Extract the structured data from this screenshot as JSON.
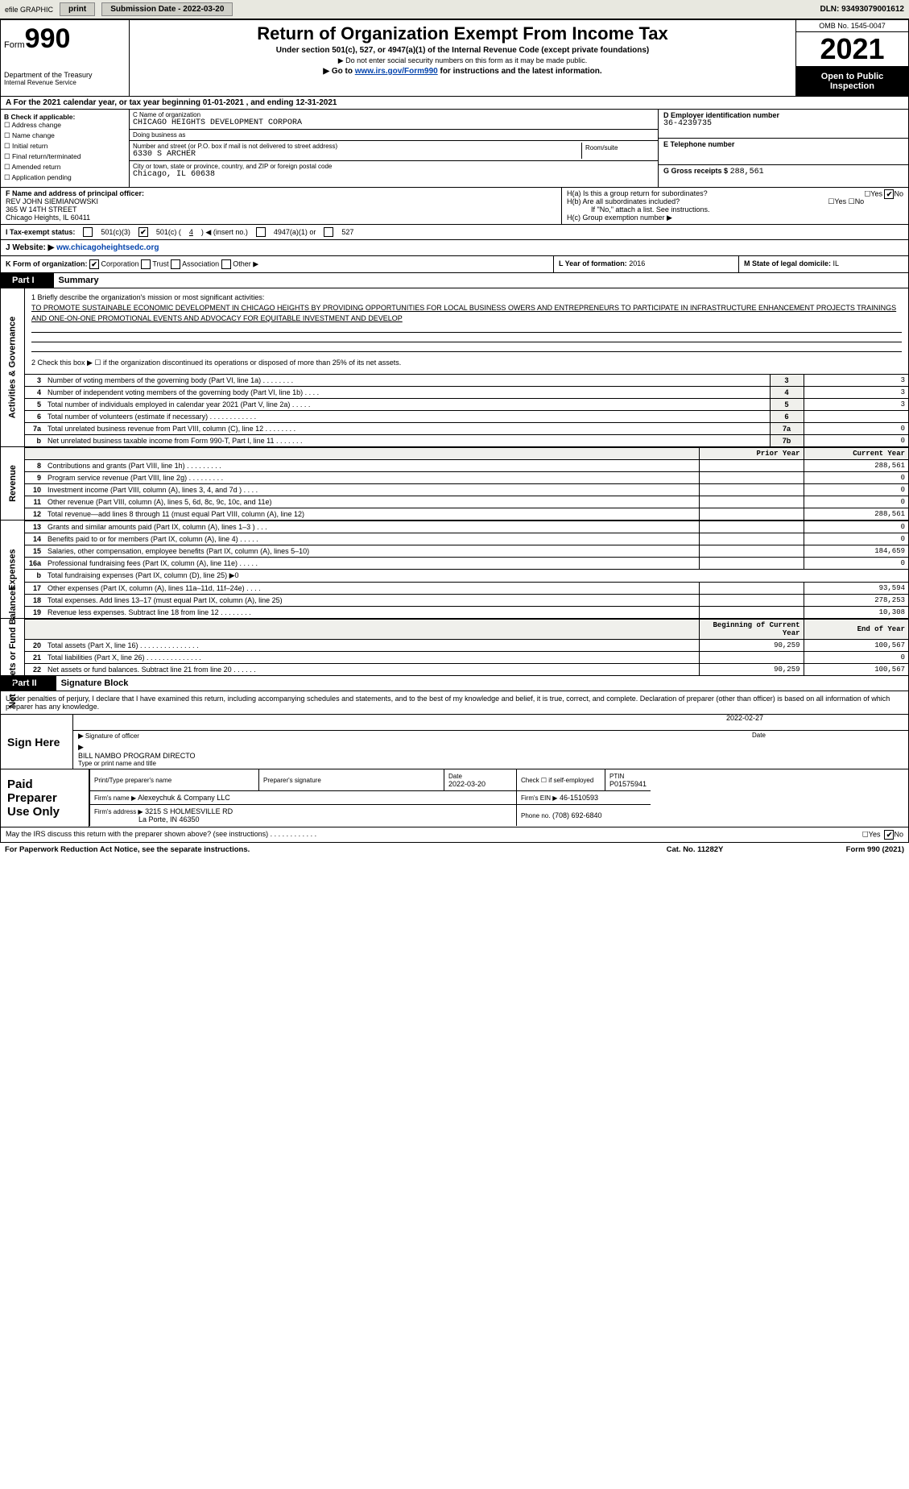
{
  "topbar": {
    "efile": "efile GRAPHIC",
    "print": "print",
    "subdate_lbl": "Submission Date - 2022-03-20",
    "dln": "DLN: 93493079001612"
  },
  "header": {
    "form_word": "Form",
    "form_no": "990",
    "title": "Return of Organization Exempt From Income Tax",
    "subtitle": "Under section 501(c), 527, or 4947(a)(1) of the Internal Revenue Code (except private foundations)",
    "note1": "▶ Do not enter social security numbers on this form as it may be made public.",
    "note2_pre": "▶ Go to ",
    "note2_link": "www.irs.gov/Form990",
    "note2_post": " for instructions and the latest information.",
    "omb": "OMB No. 1545-0047",
    "year": "2021",
    "pub": "Open to Public Inspection",
    "dept": "Department of the Treasury",
    "irs": "Internal Revenue Service"
  },
  "period": "A For the 2021 calendar year, or tax year beginning 01-01-2021    , and ending 12-31-2021",
  "B": {
    "hdr": "B Check if applicable:",
    "opts": [
      "Address change",
      "Name change",
      "Initial return",
      "Final return/terminated",
      "Amended return",
      "Application pending"
    ]
  },
  "C": {
    "name_lbl": "C Name of organization",
    "name": "CHICAGO HEIGHTS DEVELOPMENT CORPORA",
    "dba_lbl": "Doing business as",
    "dba": "",
    "street_lbl": "Number and street (or P.O. box if mail is not delivered to street address)",
    "room_lbl": "Room/suite",
    "street": "6330 S ARCHER",
    "city_lbl": "City or town, state or province, country, and ZIP or foreign postal code",
    "city": "Chicago, IL  60638"
  },
  "D": {
    "ein_lbl": "D Employer identification number",
    "ein": "36-4239735",
    "tel_lbl": "E Telephone number",
    "tel": "",
    "gross_lbl": "G Gross receipts $",
    "gross": "288,561"
  },
  "F": {
    "lbl": "F  Name and address of principal officer:",
    "name": "REV JOHN SIEMIANOWSKI",
    "addr1": "365 W 14TH STREET",
    "addr2": "Chicago Heights, IL  60411"
  },
  "H": {
    "a": "H(a)  Is this a group return for subordinates?",
    "b": "H(b)  Are all subordinates included?",
    "b_note": "If \"No,\" attach a list. See instructions.",
    "c": "H(c)  Group exemption number ▶",
    "yes": "Yes",
    "no": "No",
    "no_checked": "✔"
  },
  "I": {
    "lbl": "I    Tax-exempt status:",
    "o1": "501(c)(3)",
    "o2_pre": "501(c) (",
    "o2_val": "4",
    "o2_post": ") ◀ (insert no.)",
    "o3": "4947(a)(1) or",
    "o4": "527",
    "checked": "✔"
  },
  "J": {
    "lbl": "J   Website: ▶",
    "val": "ww.chicagoheightsedc.org"
  },
  "K": {
    "lbl": "K Form of organization:",
    "corp": "Corporation",
    "trust": "Trust",
    "assoc": "Association",
    "other": "Other ▶",
    "checked": "✔",
    "L_lbl": "L Year of formation:",
    "L_val": "2016",
    "M_lbl": "M State of legal domicile:",
    "M_val": "IL"
  },
  "part1": {
    "bar": "Part I",
    "title": "Summary",
    "side_gov": "Activities & Governance",
    "side_rev": "Revenue",
    "side_exp": "Expenses",
    "side_net": "Net Assets or Fund Balances",
    "q1": "1  Briefly describe the organization's mission or most significant activities:",
    "mission": "TO PROMOTE SUSTAINABLE ECONOMIC DEVELOPMENT IN CHICAGO HEIGHTS BY PROVIDING OPPORTUNITIES FOR LOCAL BUSINESS OWERS AND ENTREPRENEURS TO PARTICIPATE IN INFRASTRUCTURE ENHANCEMENT PROJECTS TRAININGS AND ONE-ON-ONE PROMOTIONAL EVENTS AND ADVOCACY FOR EQUITABLE INVESTMENT AND DEVELOP",
    "q2": "2   Check this box ▶ ☐ if the organization discontinued its operations or disposed of more than 25% of its net assets.",
    "rows_gov": [
      {
        "n": "3",
        "t": "Number of voting members of the governing body (Part VI, line 1a)   .    .    .    .    .    .    .    .",
        "box": "3",
        "v": "3"
      },
      {
        "n": "4",
        "t": "Number of independent voting members of the governing body (Part VI, line 1b)    .    .    .    .",
        "box": "4",
        "v": "3"
      },
      {
        "n": "5",
        "t": "Total number of individuals employed in calendar year 2021 (Part V, line 2a)    .    .    .    .    .",
        "box": "5",
        "v": "3"
      },
      {
        "n": "6",
        "t": "Total number of volunteers (estimate if necessary)    .    .    .    .    .    .    .    .    .    .    .    .",
        "box": "6",
        "v": ""
      },
      {
        "n": "7a",
        "t": "Total unrelated business revenue from Part VIII, column (C), line 12   .    .    .    .    .    .    .    .",
        "box": "7a",
        "v": "0"
      },
      {
        "n": "b",
        "t": "Net unrelated business taxable income from Form 990-T, Part I, line 11    .    .    .    .    .    .    .",
        "box": "7b",
        "v": "0"
      }
    ],
    "hdr_prior": "Prior Year",
    "hdr_curr": "Current Year",
    "rows_rev": [
      {
        "n": "8",
        "t": "Contributions and grants (Part VIII, line 1h)    .    .    .    .    .    .    .    .    .",
        "p": "",
        "c": "288,561"
      },
      {
        "n": "9",
        "t": "Program service revenue (Part VIII, line 2g)    .    .    .    .    .    .    .    .    .",
        "p": "",
        "c": "0"
      },
      {
        "n": "10",
        "t": "Investment income (Part VIII, column (A), lines 3, 4, and 7d )    .    .    .    .",
        "p": "",
        "c": "0"
      },
      {
        "n": "11",
        "t": "Other revenue (Part VIII, column (A), lines 5, 6d, 8c, 9c, 10c, and 11e)",
        "p": "",
        "c": "0"
      },
      {
        "n": "12",
        "t": "Total revenue—add lines 8 through 11 (must equal Part VIII, column (A), line 12)",
        "p": "",
        "c": "288,561"
      }
    ],
    "rows_exp": [
      {
        "n": "13",
        "t": "Grants and similar amounts paid (Part IX, column (A), lines 1–3 )   .    .    .",
        "p": "",
        "c": "0"
      },
      {
        "n": "14",
        "t": "Benefits paid to or for members (Part IX, column (A), line 4)    .    .    .    .    .",
        "p": "",
        "c": "0"
      },
      {
        "n": "15",
        "t": "Salaries, other compensation, employee benefits (Part IX, column (A), lines 5–10)",
        "p": "",
        "c": "184,659"
      },
      {
        "n": "16a",
        "t": "Professional fundraising fees (Part IX, column (A), line 11e)    .    .    .    .    .",
        "p": "",
        "c": "0"
      },
      {
        "n": "b",
        "t": "Total fundraising expenses (Part IX, column (D), line 25) ▶0",
        "p": "-",
        "c": "-"
      },
      {
        "n": "17",
        "t": "Other expenses (Part IX, column (A), lines 11a–11d, 11f–24e)    .    .    .    .",
        "p": "",
        "c": "93,594"
      },
      {
        "n": "18",
        "t": "Total expenses. Add lines 13–17 (must equal Part IX, column (A), line 25)",
        "p": "",
        "c": "278,253"
      },
      {
        "n": "19",
        "t": "Revenue less expenses. Subtract line 18 from line 12   .    .    .    .    .    .    .    .",
        "p": "",
        "c": "10,308"
      }
    ],
    "hdr_beg": "Beginning of Current Year",
    "hdr_end": "End of Year",
    "rows_net": [
      {
        "n": "20",
        "t": "Total assets (Part X, line 16)    .    .    .    .    .    .    .    .    .    .    .    .    .    .    .",
        "p": "90,259",
        "c": "100,567"
      },
      {
        "n": "21",
        "t": "Total liabilities (Part X, line 26)    .    .    .    .    .    .    .    .    .    .    .    .    .    .",
        "p": "",
        "c": "0"
      },
      {
        "n": "22",
        "t": "Net assets or fund balances. Subtract line 21 from line 20    .    .    .    .    .    .",
        "p": "90,259",
        "c": "100,567"
      }
    ]
  },
  "part2": {
    "bar": "Part II",
    "title": "Signature Block",
    "decl": "Under penalties of perjury, I declare that I have examined this return, including accompanying schedules and statements, and to the best of my knowledge and belief, it is true, correct, and complete. Declaration of preparer (other than officer) is based on all information of which preparer has any knowledge.",
    "sign_here": "Sign Here",
    "sig_of": "Signature of officer",
    "date_lbl": "Date",
    "date": "2022-02-27",
    "typed": "BILL NAMBO  PROGRAM DIRECTO",
    "typed_lbl": "Type or print name and title",
    "paid": "Paid Preparer Use Only",
    "pp_name_lbl": "Print/Type preparer's name",
    "pp_sig_lbl": "Preparer's signature",
    "pp_date_lbl": "Date",
    "pp_date": "2022-03-20",
    "pp_chk": "Check ☐ if self-employed",
    "ptin_lbl": "PTIN",
    "ptin": "P01575941",
    "firm_name_lbl": "Firm's name    ▶",
    "firm_name": "Alexeychuk & Company LLC",
    "firm_ein_lbl": "Firm's EIN ▶",
    "firm_ein": "46-1510593",
    "firm_addr_lbl": "Firm's address ▶",
    "firm_addr": "3215 S HOLMESVILLE RD",
    "firm_addr2": "La Porte, IN  46350",
    "phone_lbl": "Phone no.",
    "phone": "(708) 692-6840",
    "discuss": "May the IRS discuss this return with the preparer shown above? (see instructions)    .    .    .    .    .    .    .    .    .    .    .    .",
    "yes": "Yes",
    "no": "No",
    "no_chk": "✔"
  },
  "foot": {
    "pra": "For Paperwork Reduction Act Notice, see the separate instructions.",
    "cat": "Cat. No. 11282Y",
    "form": "Form 990 (2021)"
  },
  "colors": {
    "link": "#0645ad",
    "shade": "#f0f0ec"
  }
}
